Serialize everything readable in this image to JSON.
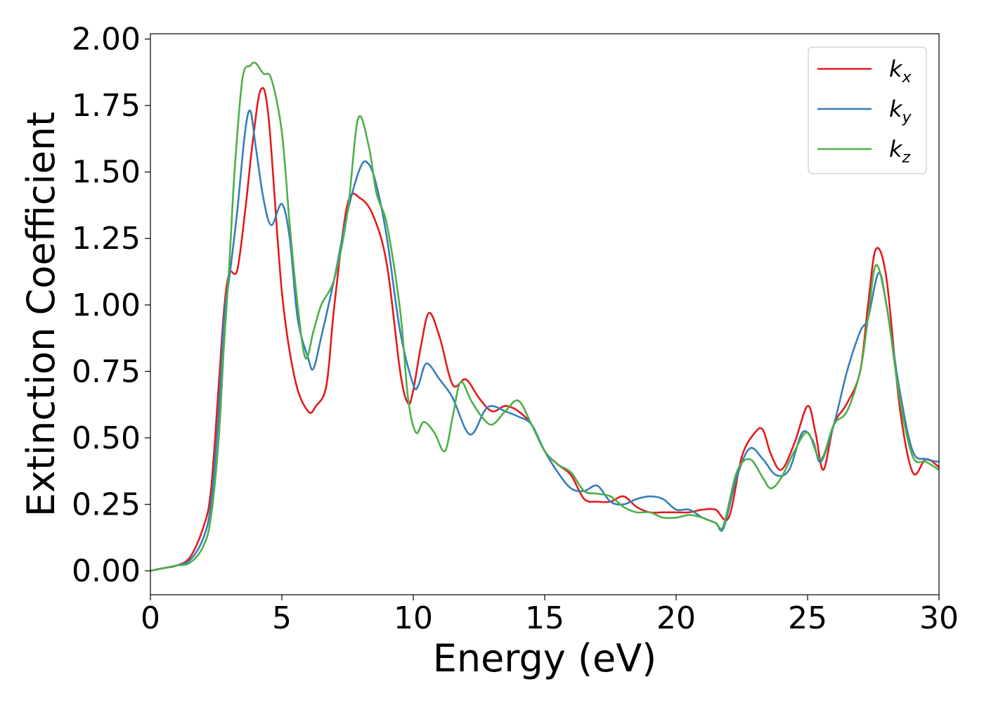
{
  "chart_data": {
    "type": "line",
    "xlabel": "Energy (eV)",
    "ylabel": "Extinction Coefficient",
    "xlim": [
      0,
      30
    ],
    "ylim": [
      -0.09,
      2.02
    ],
    "xticks": [
      0,
      5,
      10,
      15,
      20,
      25,
      30
    ],
    "xtick_labels": [
      "0",
      "5",
      "10",
      "15",
      "20",
      "25",
      "30"
    ],
    "yticks": [
      0.0,
      0.25,
      0.5,
      0.75,
      1.0,
      1.25,
      1.5,
      1.75,
      2.0
    ],
    "ytick_labels": [
      "0.00",
      "0.25",
      "0.50",
      "0.75",
      "1.00",
      "1.25",
      "1.50",
      "1.75",
      "2.00"
    ],
    "grid": false,
    "legend_position": "top-right",
    "series": [
      {
        "name": "k_x",
        "label_main": "k",
        "label_sub": "x",
        "color": "#e41a1c",
        "x": [
          0,
          0.5,
          1.0,
          1.5,
          2.0,
          2.3,
          2.6,
          2.8,
          3.0,
          3.3,
          3.6,
          3.9,
          4.2,
          4.5,
          5.0,
          5.5,
          6.0,
          6.3,
          6.7,
          7.0,
          7.5,
          8.0,
          8.5,
          9.0,
          9.5,
          9.8,
          10.0,
          10.3,
          10.6,
          11.0,
          11.5,
          12.0,
          12.5,
          13.0,
          13.5,
          14.0,
          14.5,
          15.0,
          15.5,
          16.0,
          16.5,
          17.0,
          17.5,
          18.0,
          18.5,
          19.0,
          19.5,
          20.0,
          20.5,
          21.0,
          21.5,
          22.0,
          22.5,
          23.0,
          23.3,
          23.6,
          24.0,
          24.5,
          25.0,
          25.3,
          25.6,
          26.0,
          26.5,
          27.0,
          27.3,
          27.6,
          28.0,
          28.5,
          29.0,
          29.5,
          30.0
        ],
        "y": [
          0.0,
          0.01,
          0.02,
          0.05,
          0.16,
          0.3,
          0.7,
          0.98,
          1.12,
          1.13,
          1.35,
          1.62,
          1.81,
          1.7,
          1.05,
          0.72,
          0.6,
          0.62,
          0.7,
          1.0,
          1.38,
          1.4,
          1.33,
          1.15,
          0.75,
          0.63,
          0.68,
          0.85,
          0.97,
          0.88,
          0.7,
          0.72,
          0.65,
          0.6,
          0.62,
          0.6,
          0.55,
          0.45,
          0.4,
          0.36,
          0.27,
          0.26,
          0.26,
          0.28,
          0.24,
          0.22,
          0.22,
          0.22,
          0.22,
          0.23,
          0.23,
          0.2,
          0.43,
          0.52,
          0.53,
          0.44,
          0.38,
          0.48,
          0.62,
          0.52,
          0.38,
          0.55,
          0.63,
          0.75,
          1.0,
          1.21,
          1.1,
          0.62,
          0.37,
          0.42,
          0.39
        ]
      },
      {
        "name": "k_y",
        "label_main": "k",
        "label_sub": "y",
        "color": "#377eb8",
        "x": [
          0,
          0.5,
          1.0,
          1.5,
          2.0,
          2.3,
          2.6,
          2.8,
          3.0,
          3.3,
          3.6,
          3.8,
          4.0,
          4.3,
          4.6,
          5.0,
          5.3,
          5.6,
          6.0,
          6.2,
          6.5,
          7.0,
          7.5,
          8.0,
          8.3,
          8.6,
          9.0,
          9.5,
          10.0,
          10.2,
          10.5,
          11.0,
          11.5,
          12.0,
          12.3,
          12.7,
          13.0,
          13.5,
          14.0,
          14.5,
          15.0,
          15.5,
          16.0,
          16.5,
          17.0,
          17.5,
          18.0,
          18.5,
          19.0,
          19.5,
          20.0,
          20.5,
          21.0,
          21.5,
          21.8,
          22.3,
          22.8,
          23.3,
          23.8,
          24.3,
          24.8,
          25.2,
          25.5,
          26.0,
          26.5,
          27.0,
          27.3,
          27.7,
          28.0,
          28.5,
          29.0,
          29.5,
          30.0
        ],
        "y": [
          0.0,
          0.01,
          0.02,
          0.04,
          0.12,
          0.25,
          0.6,
          0.95,
          1.1,
          1.35,
          1.65,
          1.73,
          1.6,
          1.4,
          1.3,
          1.38,
          1.25,
          0.95,
          0.8,
          0.76,
          0.88,
          1.1,
          1.35,
          1.52,
          1.53,
          1.45,
          1.25,
          0.9,
          0.7,
          0.7,
          0.78,
          0.72,
          0.65,
          0.53,
          0.52,
          0.6,
          0.62,
          0.6,
          0.58,
          0.55,
          0.45,
          0.37,
          0.31,
          0.3,
          0.32,
          0.26,
          0.25,
          0.27,
          0.28,
          0.27,
          0.23,
          0.23,
          0.2,
          0.18,
          0.16,
          0.35,
          0.46,
          0.42,
          0.36,
          0.38,
          0.52,
          0.49,
          0.41,
          0.55,
          0.75,
          0.9,
          0.95,
          1.12,
          1.0,
          0.68,
          0.45,
          0.42,
          0.41
        ]
      },
      {
        "name": "k_z",
        "label_main": "k",
        "label_sub": "z",
        "color": "#4daf4a",
        "x": [
          0,
          0.5,
          1.0,
          1.5,
          2.0,
          2.3,
          2.6,
          2.8,
          3.0,
          3.2,
          3.5,
          3.8,
          4.0,
          4.3,
          4.6,
          5.0,
          5.3,
          5.6,
          5.9,
          6.2,
          6.5,
          7.0,
          7.5,
          7.9,
          8.3,
          8.6,
          9.0,
          9.5,
          9.8,
          10.1,
          10.4,
          10.8,
          11.2,
          11.5,
          11.8,
          12.2,
          12.6,
          13.0,
          13.5,
          14.0,
          14.5,
          15.0,
          15.5,
          16.0,
          16.5,
          17.0,
          17.5,
          18.0,
          18.5,
          19.0,
          19.5,
          20.0,
          20.5,
          21.0,
          21.5,
          21.8,
          22.3,
          22.8,
          23.3,
          23.6,
          24.0,
          24.5,
          25.0,
          25.5,
          26.0,
          26.5,
          27.0,
          27.3,
          27.6,
          28.0,
          28.5,
          29.0,
          29.5,
          30.0
        ],
        "y": [
          0.0,
          0.01,
          0.02,
          0.03,
          0.09,
          0.2,
          0.5,
          0.85,
          1.15,
          1.5,
          1.85,
          1.9,
          1.91,
          1.87,
          1.85,
          1.65,
          1.3,
          1.0,
          0.8,
          0.9,
          1.0,
          1.1,
          1.35,
          1.7,
          1.6,
          1.42,
          1.3,
          0.98,
          0.65,
          0.52,
          0.56,
          0.52,
          0.45,
          0.58,
          0.71,
          0.64,
          0.58,
          0.55,
          0.6,
          0.64,
          0.55,
          0.45,
          0.4,
          0.37,
          0.3,
          0.29,
          0.28,
          0.24,
          0.22,
          0.22,
          0.2,
          0.2,
          0.21,
          0.2,
          0.18,
          0.17,
          0.37,
          0.42,
          0.35,
          0.31,
          0.35,
          0.45,
          0.52,
          0.42,
          0.55,
          0.6,
          0.75,
          0.95,
          1.15,
          1.0,
          0.65,
          0.43,
          0.41,
          0.38
        ]
      }
    ]
  }
}
